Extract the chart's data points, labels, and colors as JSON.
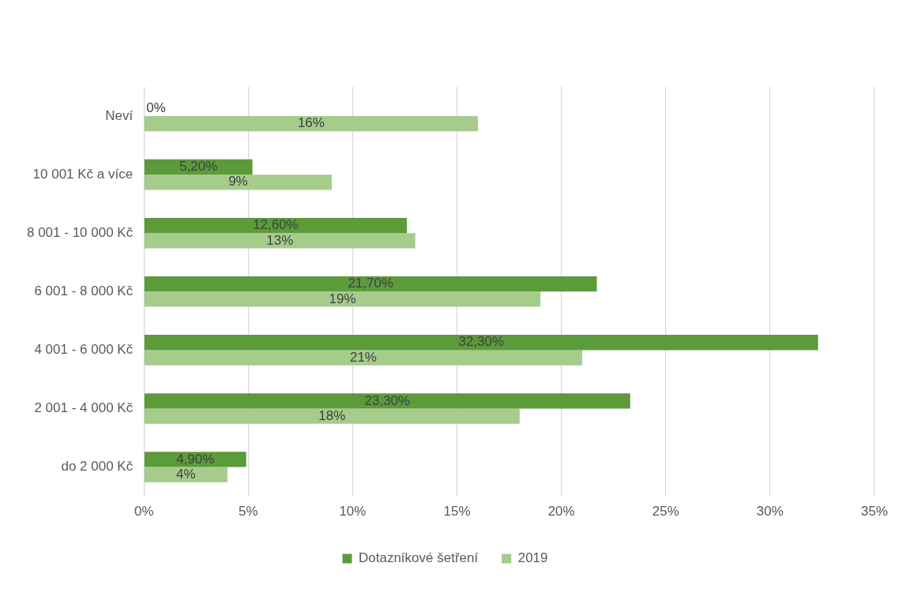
{
  "chart_data": {
    "type": "bar",
    "orientation": "horizontal",
    "categories": [
      "Neví",
      "10 001 Kč a více",
      "8 001 - 10 000 Kč",
      "6 001 - 8 000 Kč",
      "4 001 - 6 000 Kč",
      "2 001 - 4 000 Kč",
      "do 2 000 Kč"
    ],
    "series": [
      {
        "name": "Dotazníkové šetření",
        "color": "#5b9b3a",
        "values": [
          0,
          5.2,
          12.6,
          21.7,
          32.3,
          23.3,
          4.9
        ],
        "value_labels": [
          "0%",
          "5,20%",
          "12,60%",
          "21,70%",
          "32,30%",
          "23,30%",
          "4,90%"
        ]
      },
      {
        "name": "2019",
        "color": "#a6cc8c",
        "values": [
          16,
          9,
          13,
          19,
          21,
          18,
          4
        ],
        "value_labels": [
          "16%",
          "9%",
          "13%",
          "19%",
          "21%",
          "18%",
          "4%"
        ]
      }
    ],
    "xlim": [
      0,
      35
    ],
    "xticks": [
      {
        "value": 0,
        "label": "0%"
      },
      {
        "value": 5,
        "label": "5%"
      },
      {
        "value": 10,
        "label": "10%"
      },
      {
        "value": 15,
        "label": "15%"
      },
      {
        "value": 20,
        "label": "20%"
      },
      {
        "value": 25,
        "label": "25%"
      },
      {
        "value": 30,
        "label": "30%"
      },
      {
        "value": 35,
        "label": "35%"
      }
    ],
    "grid": "x",
    "legend": "bottom"
  }
}
